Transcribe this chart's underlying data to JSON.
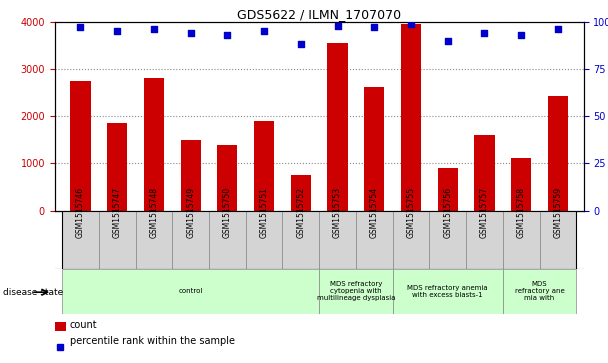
{
  "title": "GDS5622 / ILMN_1707070",
  "samples": [
    "GSM1515746",
    "GSM1515747",
    "GSM1515748",
    "GSM1515749",
    "GSM1515750",
    "GSM1515751",
    "GSM1515752",
    "GSM1515753",
    "GSM1515754",
    "GSM1515755",
    "GSM1515756",
    "GSM1515757",
    "GSM1515758",
    "GSM1515759"
  ],
  "counts": [
    2750,
    1850,
    2800,
    1500,
    1380,
    1900,
    750,
    3550,
    2620,
    3950,
    900,
    1600,
    1120,
    2420
  ],
  "percentiles": [
    97,
    95,
    96,
    94,
    93,
    95,
    88,
    98,
    97,
    99,
    90,
    94,
    93,
    96
  ],
  "ylim_left": [
    0,
    4000
  ],
  "ylim_right": [
    0,
    100
  ],
  "yticks_left": [
    0,
    1000,
    2000,
    3000,
    4000
  ],
  "yticks_right": [
    0,
    25,
    50,
    75,
    100
  ],
  "bar_color": "#cc0000",
  "dot_color": "#0000cc",
  "group_boundaries": [
    [
      0,
      7,
      "control"
    ],
    [
      7,
      9,
      "MDS refractory\ncytopenia with\nmultilineage dysplasia"
    ],
    [
      9,
      12,
      "MDS refractory anemia\nwith excess blasts-1"
    ],
    [
      12,
      14,
      "MDS\nrefractory ane\nmia with"
    ]
  ],
  "disease_state_label": "disease state",
  "legend_count_label": "count",
  "legend_percentile_label": "percentile rank within the sample",
  "grid_color": "#888888",
  "tick_label_color_left": "#cc0000",
  "tick_label_color_right": "#0000cc",
  "xtick_bg_color": "#d4d4d4",
  "disease_bg_color": "#ccffcc"
}
